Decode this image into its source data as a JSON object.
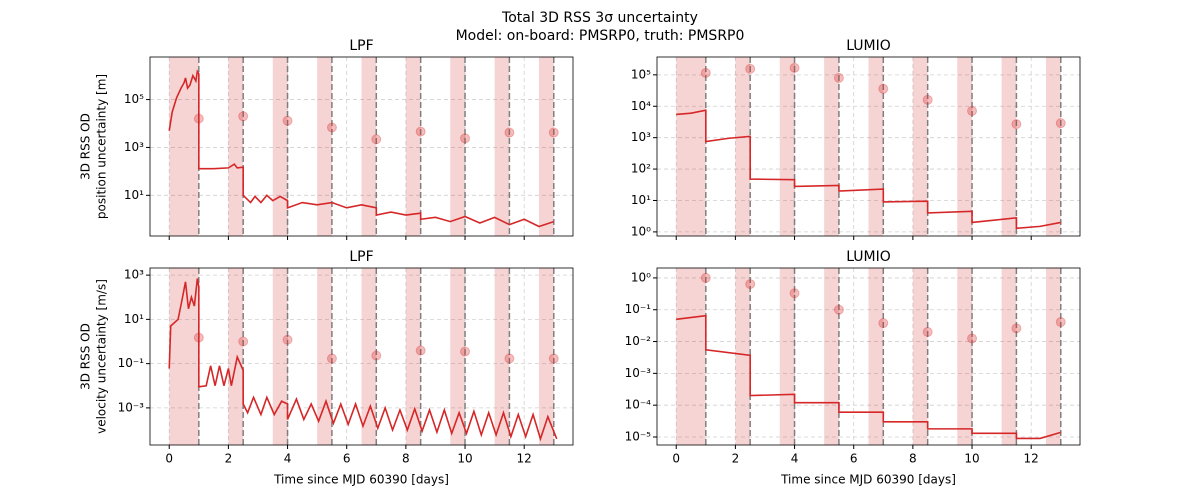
{
  "title": "Total 3D RSS 3σ uncertainty",
  "subtitle": "Model: on-board: PMSRP0, truth: PMSRP0",
  "chart_data": [
    {
      "type": "line",
      "title": "LPF",
      "ylabel": [
        "3D RSS OD",
        "position uncertainty [m]"
      ],
      "log_y": true,
      "grid": true,
      "show_xtick_labels": false,
      "xlim": [
        -0.65,
        13.65
      ],
      "xticks": [
        0,
        2,
        4,
        6,
        8,
        10,
        12
      ],
      "ylim": [
        0.2,
        6000000
      ],
      "yticks": [
        {
          "value": 10,
          "label": "10¹"
        },
        {
          "value": 1000,
          "label": "10³"
        },
        {
          "value": 100000,
          "label": "10⁵"
        }
      ],
      "span_color": "#d62728",
      "span_edge_color": "#7f7f7f",
      "spans": [
        [
          0,
          1
        ],
        [
          2,
          2.5
        ],
        [
          3.5,
          4
        ],
        [
          5,
          5.5
        ],
        [
          6.5,
          7
        ],
        [
          8,
          8.5
        ],
        [
          9.5,
          10
        ],
        [
          11,
          11.5
        ],
        [
          12.5,
          13
        ]
      ],
      "line": {
        "color": "#d62728",
        "x": [
          0,
          0.1,
          0.25,
          0.4,
          0.5,
          0.55,
          0.62,
          0.7,
          0.8,
          0.9,
          0.95,
          1,
          1,
          1.5,
          2,
          2.2,
          2.3,
          2.5,
          2.5,
          2.75,
          2.9,
          3.1,
          3.3,
          3.5,
          3.75,
          4,
          4,
          4.5,
          5,
          5.5,
          6,
          6.5,
          7,
          7,
          7.5,
          8,
          8.5,
          8.5,
          9,
          9.5,
          10,
          10.5,
          11,
          11.5,
          12,
          12.5,
          13
        ],
        "values": [
          5000,
          30000,
          120000,
          300000,
          500000,
          800000,
          300000,
          400000,
          1000000,
          600000,
          1500000,
          1200000,
          130,
          130,
          140,
          200,
          140,
          150,
          10,
          5,
          9,
          5,
          10,
          6,
          9,
          6,
          3,
          5,
          4,
          5,
          3,
          4,
          3,
          1.5,
          2,
          1.5,
          1.8,
          1,
          1.2,
          0.8,
          1.3,
          0.7,
          1.2,
          0.6,
          1,
          0.5,
          0.8
        ]
      },
      "markers": {
        "color": "#d62728",
        "x": [
          1,
          2.5,
          4,
          5.5,
          7,
          8.5,
          10,
          11.5,
          13
        ],
        "values": [
          16000,
          20000,
          13000,
          6800,
          2200,
          4600,
          2400,
          4200,
          4200
        ]
      }
    },
    {
      "type": "line",
      "title": "LUMIO",
      "log_y": true,
      "grid": true,
      "show_xtick_labels": false,
      "xlim": [
        -0.65,
        13.65
      ],
      "xticks": [
        0,
        2,
        4,
        6,
        8,
        10,
        12
      ],
      "ylim": [
        0.74,
        370000
      ],
      "yticks": [
        {
          "value": 1,
          "label": "10⁰"
        },
        {
          "value": 10,
          "label": "10¹"
        },
        {
          "value": 100,
          "label": "10²"
        },
        {
          "value": 1000,
          "label": "10³"
        },
        {
          "value": 10000,
          "label": "10⁴"
        },
        {
          "value": 100000,
          "label": "10⁵"
        }
      ],
      "span_color": "#d62728",
      "span_edge_color": "#7f7f7f",
      "spans": [
        [
          0,
          1
        ],
        [
          2,
          2.5
        ],
        [
          3.5,
          4
        ],
        [
          5,
          5.5
        ],
        [
          6.5,
          7
        ],
        [
          8,
          8.5
        ],
        [
          9.5,
          10
        ],
        [
          11,
          11.5
        ],
        [
          12.5,
          13
        ]
      ],
      "line": {
        "color": "#d62728",
        "x": [
          0,
          0.5,
          1,
          1,
          1.75,
          2.5,
          2.5,
          4,
          4,
          5.5,
          5.5,
          7,
          7,
          8.5,
          8.5,
          10,
          10,
          11.5,
          11.5,
          12.3,
          13
        ],
        "values": [
          5500,
          6000,
          7500,
          750,
          950,
          1100,
          48,
          46,
          28,
          30,
          20,
          23,
          9,
          9.5,
          4,
          4.5,
          2,
          2.8,
          1.3,
          1.5,
          2
        ]
      },
      "markers": {
        "color": "#d62728",
        "x": [
          1,
          2.5,
          4,
          5.5,
          7,
          8.5,
          10,
          11.5,
          13
        ],
        "values": [
          115000,
          155000,
          167000,
          80000,
          36000,
          16000,
          7100,
          2700,
          2900
        ]
      }
    },
    {
      "type": "line",
      "title": "LPF",
      "ylabel": [
        "3D RSS OD",
        "velocity uncertainty [m/s]"
      ],
      "xlabel": "Time since MJD 60390 [days]",
      "log_y": true,
      "grid": true,
      "show_xtick_labels": true,
      "xlim": [
        -0.65,
        13.65
      ],
      "xticks": [
        0,
        2,
        4,
        6,
        8,
        10,
        12
      ],
      "ylim": [
        2.1e-05,
        2100
      ],
      "yticks": [
        {
          "value": 0.001,
          "label": "10⁻³"
        },
        {
          "value": 0.1,
          "label": "10⁻¹"
        },
        {
          "value": 10,
          "label": "10¹"
        },
        {
          "value": 1000,
          "label": "10³"
        }
      ],
      "span_color": "#d62728",
      "span_edge_color": "#7f7f7f",
      "spans": [
        [
          0,
          1
        ],
        [
          2,
          2.5
        ],
        [
          3.5,
          4
        ],
        [
          5,
          5.5
        ],
        [
          6.5,
          7
        ],
        [
          8,
          8.5
        ],
        [
          9.5,
          10
        ],
        [
          11,
          11.5
        ],
        [
          12.5,
          13
        ]
      ],
      "line": {
        "color": "#d62728",
        "x": [
          0,
          0.05,
          0.3,
          0.45,
          0.55,
          0.65,
          0.75,
          0.85,
          0.95,
          1,
          1,
          1.25,
          1.4,
          1.55,
          1.7,
          1.85,
          2,
          2.1,
          2.3,
          2.5,
          2.5,
          2.65,
          2.85,
          3.1,
          3.3,
          3.55,
          3.8,
          4,
          4,
          4.3,
          4.55,
          4.8,
          5.05,
          5.3,
          5.55,
          5.8,
          6.05,
          6.3,
          6.55,
          6.8,
          7.05,
          7.3,
          7.55,
          7.8,
          8.05,
          8.3,
          8.55,
          8.8,
          9.05,
          9.3,
          9.55,
          9.8,
          10.05,
          10.3,
          10.55,
          10.8,
          11.05,
          11.3,
          11.55,
          11.8,
          12.05,
          12.3,
          12.55,
          12.8,
          13.1
        ],
        "values": [
          0.06,
          5,
          10,
          100,
          500,
          30,
          100,
          40,
          700,
          300,
          0.009,
          0.01,
          0.08,
          0.01,
          0.08,
          0.01,
          0.06,
          0.01,
          0.2,
          0.05,
          0.0015,
          0.0006,
          0.003,
          0.0005,
          0.003,
          0.0005,
          0.002,
          0.0015,
          0.0003,
          0.0025,
          0.0003,
          0.0015,
          0.00025,
          0.002,
          0.0002,
          0.0015,
          0.00018,
          0.0015,
          0.00015,
          0.0012,
          0.00012,
          0.001,
          0.0001,
          0.0008,
          0.0001,
          0.0009,
          9e-05,
          0.0008,
          8e-05,
          0.0008,
          7e-05,
          0.0006,
          7e-05,
          0.0007,
          6e-05,
          0.0006,
          6e-05,
          0.0006,
          5e-05,
          0.0005,
          5e-05,
          0.0005,
          4e-05,
          0.0004,
          4e-05
        ]
      },
      "markers": {
        "color": "#d62728",
        "x": [
          1,
          2.5,
          4,
          5.5,
          7,
          8.5,
          10,
          11.5,
          13
        ],
        "values": [
          1.5,
          1.0,
          1.2,
          0.17,
          0.23,
          0.39,
          0.35,
          0.17,
          0.17
        ]
      }
    },
    {
      "type": "line",
      "title": "LUMIO",
      "xlabel": "Time since MJD 60390 [days]",
      "log_y": true,
      "grid": true,
      "show_xtick_labels": true,
      "xlim": [
        -0.65,
        13.65
      ],
      "xticks": [
        0,
        2,
        4,
        6,
        8,
        10,
        12
      ],
      "ylim": [
        5.6e-06,
        2.05
      ],
      "yticks": [
        {
          "value": 1e-05,
          "label": "10⁻⁵"
        },
        {
          "value": 0.0001,
          "label": "10⁻⁴"
        },
        {
          "value": 0.001,
          "label": "10⁻³"
        },
        {
          "value": 0.01,
          "label": "10⁻²"
        },
        {
          "value": 0.1,
          "label": "10⁻¹"
        },
        {
          "value": 1,
          "label": "10⁰"
        }
      ],
      "span_color": "#d62728",
      "span_edge_color": "#7f7f7f",
      "spans": [
        [
          0,
          1
        ],
        [
          2,
          2.5
        ],
        [
          3.5,
          4
        ],
        [
          5,
          5.5
        ],
        [
          6.5,
          7
        ],
        [
          8,
          8.5
        ],
        [
          9.5,
          10
        ],
        [
          11,
          11.5
        ],
        [
          12.5,
          13
        ]
      ],
      "line": {
        "color": "#d62728",
        "x": [
          0,
          1,
          1,
          2.5,
          2.5,
          4,
          4,
          5.5,
          5.5,
          7,
          7,
          8.5,
          8.5,
          10,
          10,
          11.5,
          11.5,
          12.3,
          13
        ],
        "values": [
          0.05,
          0.065,
          0.0055,
          0.0037,
          0.0002,
          0.00022,
          0.00012,
          0.00012,
          6e-05,
          6e-05,
          3e-05,
          3e-05,
          1.8e-05,
          1.8e-05,
          1.3e-05,
          1.3e-05,
          9e-06,
          9e-06,
          1.4e-05
        ]
      },
      "markers": {
        "color": "#d62728",
        "x": [
          1,
          2.5,
          4,
          5.5,
          7,
          8.5,
          10,
          11.5,
          13
        ],
        "values": [
          1.0,
          0.64,
          0.33,
          0.1,
          0.038,
          0.02,
          0.0125,
          0.026,
          0.041
        ]
      }
    }
  ]
}
